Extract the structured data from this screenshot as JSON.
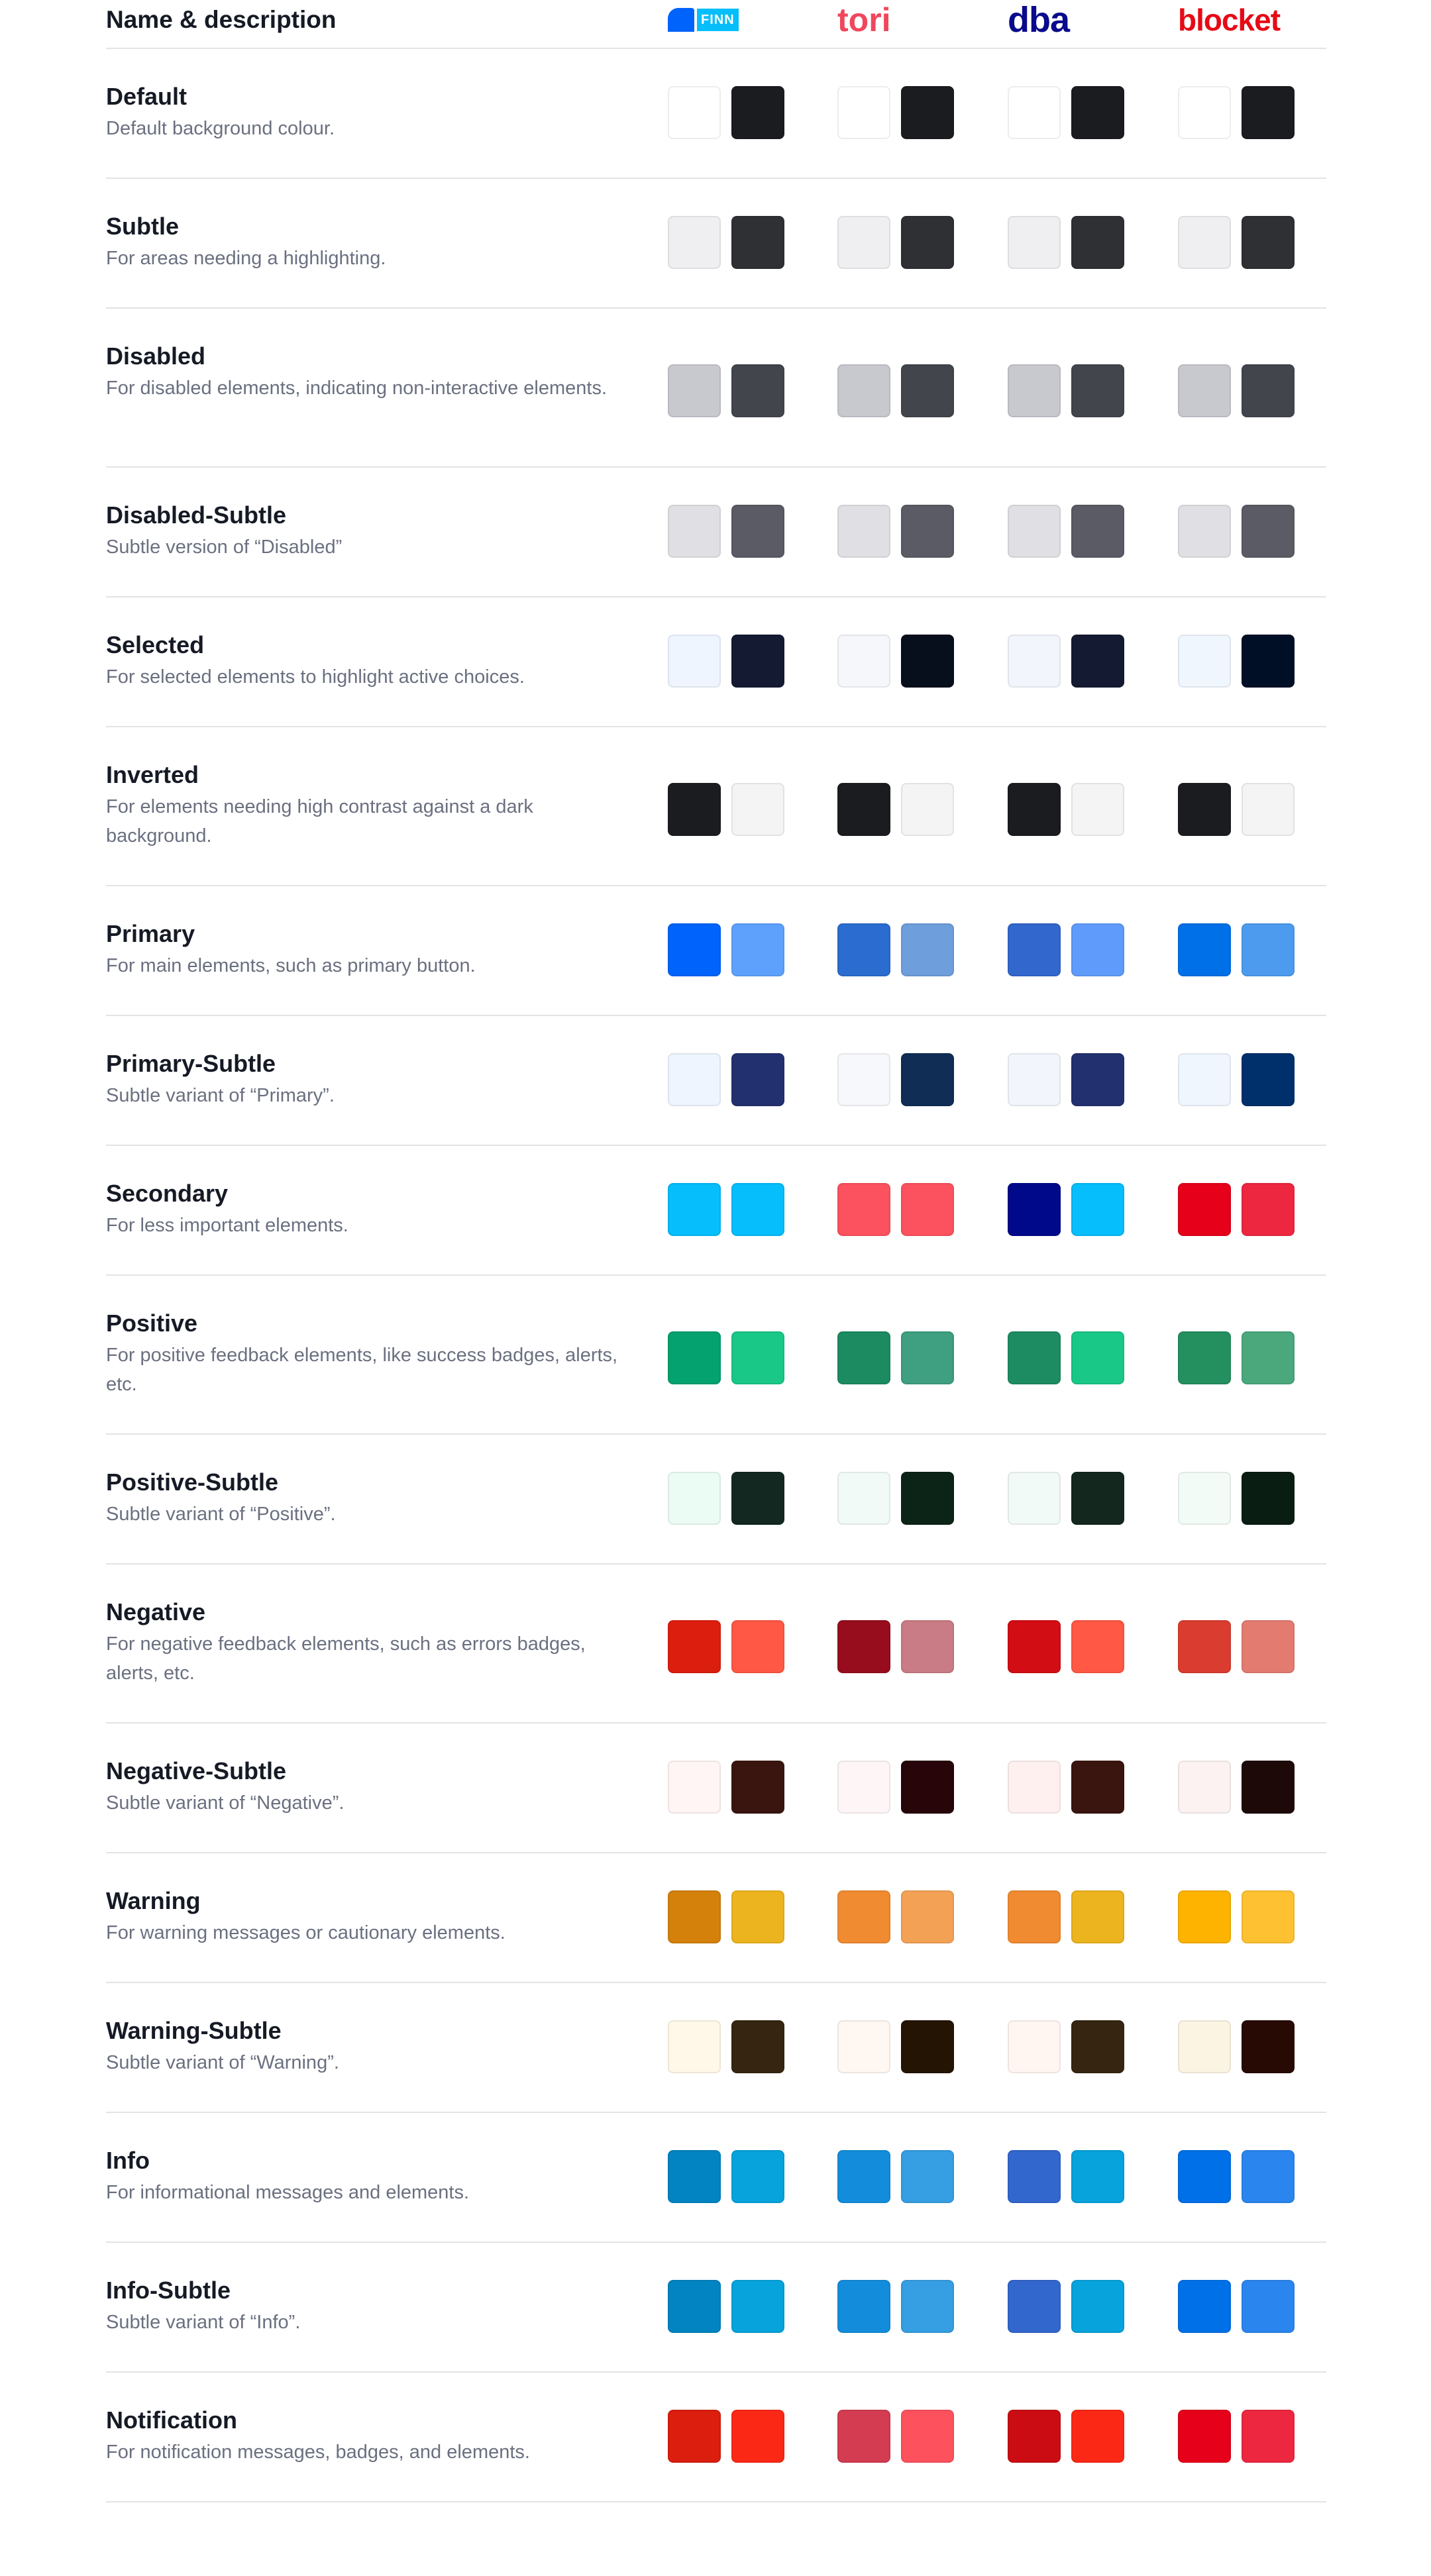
{
  "header": {
    "title": "Name & description",
    "brands": {
      "finn": {
        "label": "FINN",
        "shape_color": "#0063fb",
        "box_color": "#06befb"
      },
      "tori": {
        "label": "tori",
        "color": "#f0475c"
      },
      "dba": {
        "label": "dba",
        "color": "#0a0a8c"
      },
      "blocket": {
        "label": "blocket",
        "color": "#e60a16"
      }
    }
  },
  "rows": [
    {
      "name": "Default",
      "desc": "Default background colour.",
      "lines": 1,
      "colors": [
        [
          "#ffffff",
          "#1b1c20"
        ],
        [
          "#ffffff",
          "#1b1c20"
        ],
        [
          "#ffffff",
          "#1b1c20"
        ],
        [
          "#ffffff",
          "#1b1c20"
        ]
      ]
    },
    {
      "name": "Subtle",
      "desc": "For areas needing a highlighting.",
      "lines": 1,
      "colors": [
        [
          "#efeff1",
          "#2f3034"
        ],
        [
          "#efeff1",
          "#2f3034"
        ],
        [
          "#efeff1",
          "#2f3034"
        ],
        [
          "#efeff1",
          "#2f3034"
        ]
      ]
    },
    {
      "name": "Disabled",
      "desc": "For disabled elements, indicating non-interactive elements.",
      "lines": 2,
      "colors": [
        [
          "#c8c9cf",
          "#43454d"
        ],
        [
          "#c8c9cf",
          "#43454d"
        ],
        [
          "#c8c9cf",
          "#43454d"
        ],
        [
          "#c8c9cf",
          "#43454d"
        ]
      ]
    },
    {
      "name": "Disabled-Subtle",
      "desc": "Subtle version of “Disabled”",
      "lines": 1,
      "colors": [
        [
          "#e0e0e4",
          "#5a5b64"
        ],
        [
          "#e0e0e4",
          "#5a5b64"
        ],
        [
          "#e0e0e4",
          "#5a5b64"
        ],
        [
          "#e0e0e4",
          "#5a5b64"
        ]
      ]
    },
    {
      "name": "Selected",
      "desc": "For selected elements to highlight active choices.",
      "lines": 1,
      "colors": [
        [
          "#eef5ff",
          "#151a33"
        ],
        [
          "#f5f7fb",
          "#080f1c"
        ],
        [
          "#f2f5fc",
          "#151a33"
        ],
        [
          "#f0f6fe",
          "#000f26"
        ]
      ]
    },
    {
      "name": "Inverted",
      "desc": "For elements needing high contrast against a dark background.",
      "lines": 2,
      "colors": [
        [
          "#1b1c20",
          "#f4f4f5"
        ],
        [
          "#1b1c20",
          "#f4f4f5"
        ],
        [
          "#1b1c20",
          "#f4f4f5"
        ],
        [
          "#1b1c20",
          "#f4f4f5"
        ]
      ]
    },
    {
      "name": "Primary",
      "desc": "For main elements, such as primary button.",
      "lines": 1,
      "colors": [
        [
          "#0063fb",
          "#5ea1fc"
        ],
        [
          "#2a6ccf",
          "#6e9edb"
        ],
        [
          "#3267cd",
          "#5f9bfa"
        ],
        [
          "#0070e8",
          "#4d9bef"
        ]
      ]
    },
    {
      "name": "Primary-Subtle",
      "desc": "Subtle variant of “Primary”.",
      "lines": 1,
      "colors": [
        [
          "#eef5ff",
          "#233070"
        ],
        [
          "#f6f8fc",
          "#0f2d55"
        ],
        [
          "#f2f5fc",
          "#233070"
        ],
        [
          "#f0f6fe",
          "#00306b"
        ]
      ]
    },
    {
      "name": "Secondary",
      "desc": "For less important elements.",
      "lines": 1,
      "colors": [
        [
          "#06befb",
          "#06befb"
        ],
        [
          "#fc515e",
          "#fc515e"
        ],
        [
          "#00098a",
          "#06befb"
        ],
        [
          "#e60019",
          "#ee2740"
        ]
      ]
    },
    {
      "name": "Positive",
      "desc": "For positive feedback elements, like success badges, alerts, etc.",
      "lines": 2,
      "colors": [
        [
          "#03a26f",
          "#19c887"
        ],
        [
          "#1c8b62",
          "#3e9f81"
        ],
        [
          "#1e8c63",
          "#19c887"
        ],
        [
          "#24905f",
          "#4aa87c"
        ]
      ]
    },
    {
      "name": "Positive-Subtle",
      "desc": "Subtle variant of “Positive”.",
      "lines": 1,
      "colors": [
        [
          "#ebfcf4",
          "#132820"
        ],
        [
          "#f2faf7",
          "#0c2417"
        ],
        [
          "#f2faf7",
          "#13271f"
        ],
        [
          "#f3fbf7",
          "#0a1d13"
        ]
      ]
    },
    {
      "name": "Negative",
      "desc": "For negative feedback elements, such as errors badges, alerts, etc.",
      "lines": 2,
      "colors": [
        [
          "#dc1e0e",
          "#ff5844"
        ],
        [
          "#970d1e",
          "#c97c85"
        ],
        [
          "#d20d13",
          "#ff5844"
        ],
        [
          "#da3d2f",
          "#e37b71"
        ]
      ]
    },
    {
      "name": "Negative-Subtle",
      "desc": "Subtle variant of “Negative”.",
      "lines": 1,
      "colors": [
        [
          "#fff5f4",
          "#3a150f"
        ],
        [
          "#fdf5f6",
          "#270509"
        ],
        [
          "#fff0f0",
          "#3a150f"
        ],
        [
          "#fbf2f1",
          "#1e0909"
        ]
      ]
    },
    {
      "name": "Warning",
      "desc": "For warning messages or cautionary elements.",
      "lines": 1,
      "colors": [
        [
          "#d4810c",
          "#ecb41f"
        ],
        [
          "#f08b31",
          "#f3a255"
        ],
        [
          "#f08b31",
          "#ecb41f"
        ],
        [
          "#fdb300",
          "#fec132"
        ]
      ]
    },
    {
      "name": "Warning-Subtle",
      "desc": "Subtle variant of “Warning”.",
      "lines": 1,
      "colors": [
        [
          "#fff8e8",
          "#352511"
        ],
        [
          "#fff7f2",
          "#241404"
        ],
        [
          "#fff6f2",
          "#352511"
        ],
        [
          "#fbf4e2",
          "#280a04"
        ]
      ]
    },
    {
      "name": "Info",
      "desc": "For informational messages and elements.",
      "lines": 1,
      "colors": [
        [
          "#0284c2",
          "#06a3dc"
        ],
        [
          "#138ddb",
          "#369ee2"
        ],
        [
          "#3267cd",
          "#06a3dc"
        ],
        [
          "#0070e8",
          "#2a86ee"
        ]
      ]
    },
    {
      "name": "Info-Subtle",
      "desc": "Subtle variant of “Info”.",
      "lines": 1,
      "colors": [
        [
          "#0284c2",
          "#06a3dc"
        ],
        [
          "#138ddb",
          "#369ee2"
        ],
        [
          "#3267cd",
          "#06a3dc"
        ],
        [
          "#0070e8",
          "#2a86ee"
        ]
      ]
    },
    {
      "name": "Notification",
      "desc": "For notification messages, badges, and elements.",
      "lines": 1,
      "colors": [
        [
          "#db1e0e",
          "#fc2816"
        ],
        [
          "#d33c51",
          "#fd515e"
        ],
        [
          "#cb0d13",
          "#fc2816"
        ],
        [
          "#e60019",
          "#ee2740"
        ]
      ]
    }
  ]
}
